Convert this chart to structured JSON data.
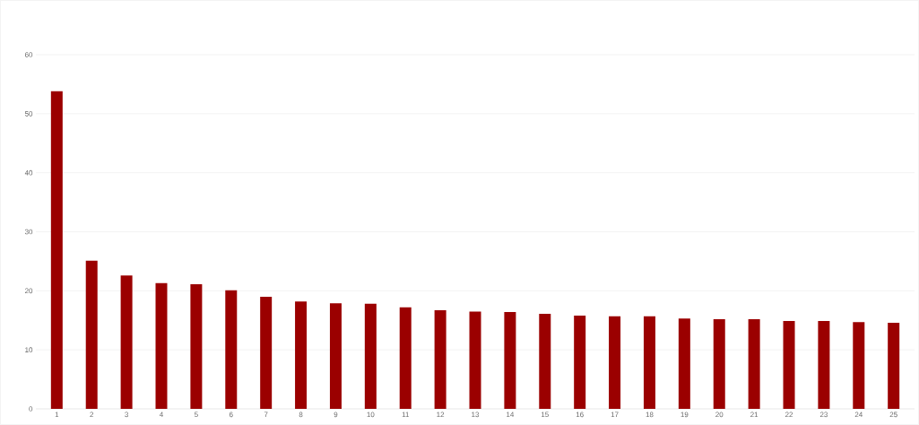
{
  "chart_data": {
    "type": "bar",
    "categories": [
      "1",
      "2",
      "3",
      "4",
      "5",
      "6",
      "7",
      "8",
      "9",
      "10",
      "11",
      "12",
      "13",
      "14",
      "15",
      "16",
      "17",
      "18",
      "19",
      "20",
      "21",
      "22",
      "23",
      "24",
      "25"
    ],
    "values": [
      53.8,
      25.1,
      22.6,
      21.3,
      21.1,
      20.1,
      19.0,
      18.2,
      17.9,
      17.8,
      17.2,
      16.7,
      16.5,
      16.4,
      16.1,
      15.8,
      15.7,
      15.7,
      15.3,
      15.2,
      15.2,
      14.9,
      14.9,
      14.7,
      14.6
    ],
    "color": "#9b0000",
    "ylim": [
      0,
      60
    ],
    "yticks": [
      0,
      10,
      20,
      30,
      40,
      50,
      60
    ],
    "grid": "y"
  }
}
